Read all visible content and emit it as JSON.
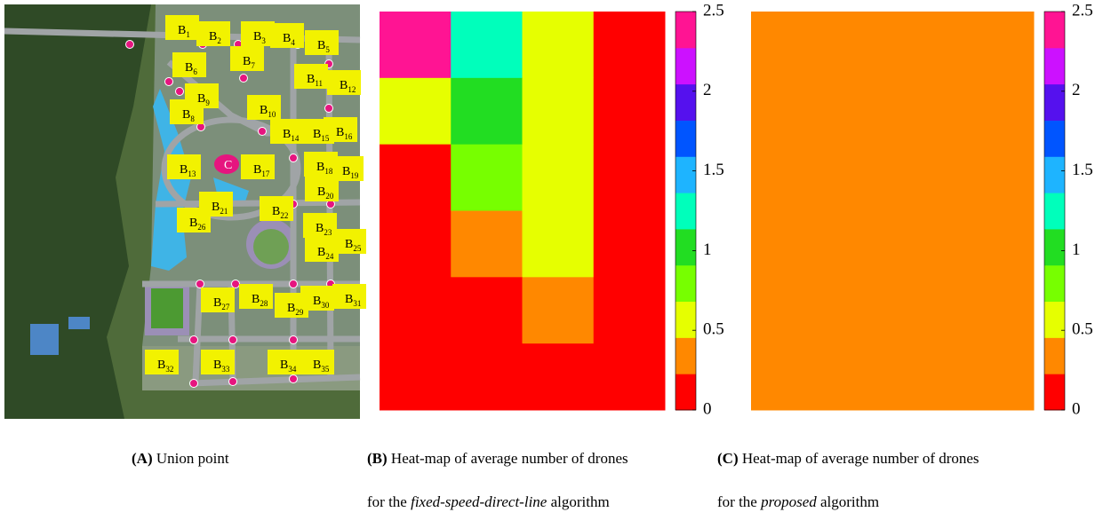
{
  "panels": [
    {
      "map_labels": [
        {
          "main": "B",
          "sub": "1"
        },
        {
          "main": "B",
          "sub": "2"
        },
        {
          "main": "B",
          "sub": "3"
        },
        {
          "main": "B",
          "sub": "4"
        },
        {
          "main": "B",
          "sub": "5"
        },
        {
          "main": "B",
          "sub": "6"
        },
        {
          "main": "B",
          "sub": "7"
        },
        {
          "main": "B",
          "sub": "8"
        },
        {
          "main": "B",
          "sub": "9"
        },
        {
          "main": "B",
          "sub": "10"
        },
        {
          "main": "B",
          "sub": "11"
        },
        {
          "main": "B",
          "sub": "12"
        },
        {
          "main": "B",
          "sub": "13"
        },
        {
          "main": "B",
          "sub": "14"
        },
        {
          "main": "B",
          "sub": "15"
        },
        {
          "main": "B",
          "sub": "16"
        },
        {
          "main": "B",
          "sub": "17"
        },
        {
          "main": "B",
          "sub": "18"
        },
        {
          "main": "B",
          "sub": "19"
        },
        {
          "main": "B",
          "sub": "20"
        },
        {
          "main": "B",
          "sub": "21"
        },
        {
          "main": "B",
          "sub": "22"
        },
        {
          "main": "B",
          "sub": "23"
        },
        {
          "main": "B",
          "sub": "24"
        },
        {
          "main": "B",
          "sub": "25"
        },
        {
          "main": "B",
          "sub": "26"
        },
        {
          "main": "B",
          "sub": "27"
        },
        {
          "main": "B",
          "sub": "28"
        },
        {
          "main": "B",
          "sub": "29"
        },
        {
          "main": "B",
          "sub": "30"
        },
        {
          "main": "B",
          "sub": "31"
        },
        {
          "main": "B",
          "sub": "32"
        },
        {
          "main": "B",
          "sub": "33"
        },
        {
          "main": "B",
          "sub": "34"
        },
        {
          "main": "B",
          "sub": "35"
        },
        {
          "main": "C"
        }
      ],
      "caption": {
        "tag": "(A)",
        "lines": [
          [
            {
              "text": "Union point"
            }
          ]
        ]
      }
    },
    {
      "heatmap": {
        "values": [
          [
            2.4,
            1.3,
            0.6,
            0.1
          ],
          [
            0.6,
            1.0,
            0.6,
            0.1
          ],
          [
            0.1,
            0.8,
            0.6,
            0.1
          ],
          [
            0.1,
            0.35,
            0.6,
            0.1
          ],
          [
            0.1,
            0.1,
            0.35,
            0.1
          ],
          [
            0.1,
            0.1,
            0.1,
            0.1
          ]
        ],
        "clim": [
          0,
          2.5
        ],
        "ticks": [
          0,
          0.5,
          1,
          1.5,
          2,
          2.5
        ],
        "colormap": [
          "#ff0000",
          "#ff8800",
          "#e6ff00",
          "#77ff00",
          "#22dd22",
          "#00ffbb",
          "#1eb4ff",
          "#0055ff",
          "#5511ee",
          "#cc11ff",
          "#ff1493"
        ]
      },
      "caption": {
        "tag": "(B)",
        "lines": [
          [
            {
              "text": "Heat-map of average number of drones"
            }
          ],
          [
            {
              "text": "for the "
            },
            {
              "text": "fixed-speed-direct-line",
              "italic": true
            },
            {
              "text": " algorithm"
            }
          ]
        ]
      }
    },
    {
      "heatmap": {
        "values": [
          [
            0.35
          ]
        ],
        "clim": [
          0,
          2.5
        ],
        "ticks": [
          0,
          0.5,
          1,
          1.5,
          2,
          2.5
        ],
        "colormap": [
          "#ff0000",
          "#ff8800",
          "#e6ff00",
          "#77ff00",
          "#22dd22",
          "#00ffbb",
          "#1eb4ff",
          "#0055ff",
          "#5511ee",
          "#cc11ff",
          "#ff1493"
        ]
      },
      "caption": {
        "tag": "(C)",
        "lines": [
          [
            {
              "text": "Heat-map of average number of drones"
            }
          ],
          [
            {
              "text": "for the "
            },
            {
              "text": "proposed",
              "italic": true
            },
            {
              "text": " algorithm"
            }
          ]
        ]
      }
    }
  ]
}
